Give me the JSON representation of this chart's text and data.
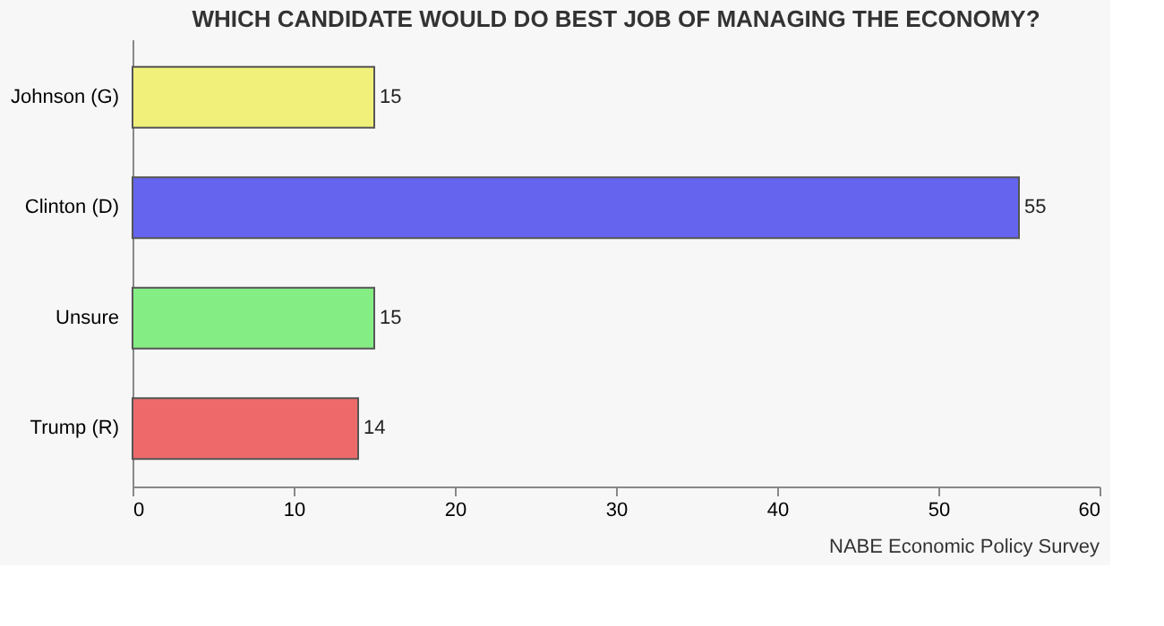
{
  "chart_data": {
    "type": "bar",
    "orientation": "horizontal",
    "title": "WHICH CANDIDATE WOULD DO BEST JOB OF MANAGING THE ECONOMY?",
    "categories": [
      "Johnson (G)",
      "Clinton (D)",
      "Unsure",
      "Trump (R)"
    ],
    "values": [
      15,
      55,
      15,
      14
    ],
    "colors": [
      "#f0f07a",
      "#6464ee",
      "#84ee84",
      "#ee6a6a"
    ],
    "xlim": [
      0,
      60
    ],
    "xticks": [
      0,
      10,
      20,
      30,
      40,
      50,
      60
    ],
    "data_labels": true,
    "grid": false,
    "annotations": [
      "NABE Economic Policy Survey"
    ]
  }
}
